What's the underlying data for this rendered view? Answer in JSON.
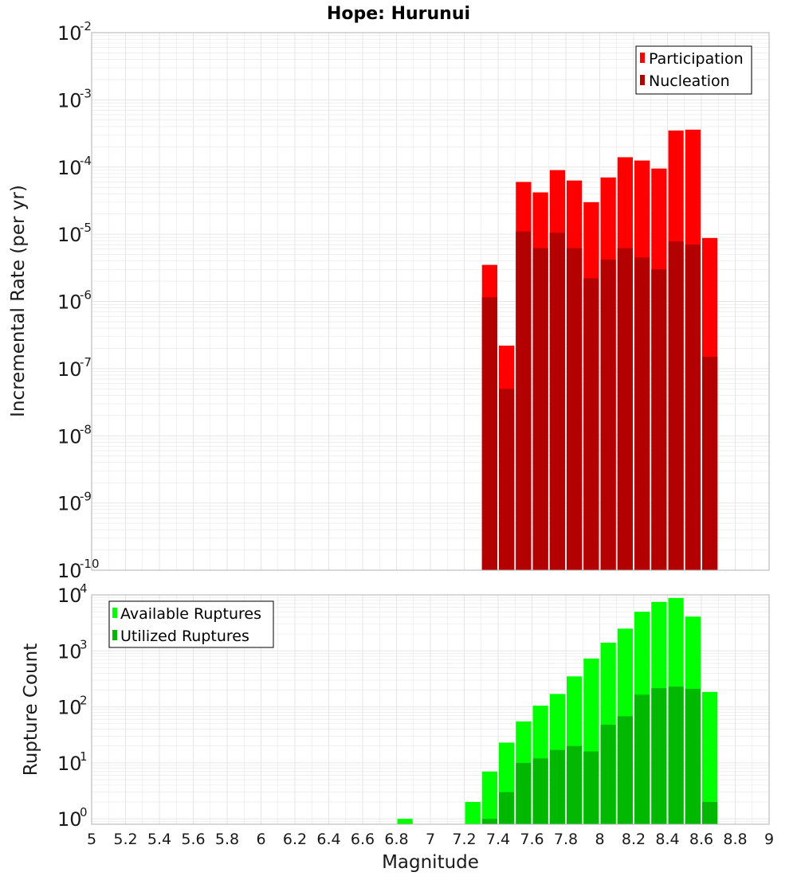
{
  "title": "Hope: Hurunui",
  "colors": {
    "participation": "#ff0000",
    "nucleation": "#b30000",
    "available": "#00ff00",
    "utilized": "#00b800",
    "grid": "#e6e6e6",
    "frame": "#b0b0b0"
  },
  "chart_data": [
    {
      "type": "bar",
      "ylabel": "Incremental Rate (per yr)",
      "xlabel": "",
      "yscale": "log",
      "ylim": [
        1e-10,
        0.01
      ],
      "xlim": [
        5,
        9
      ],
      "y_ticks": [
        {
          "base": "10",
          "exp": "-10"
        },
        {
          "base": "10",
          "exp": "-9"
        },
        {
          "base": "10",
          "exp": "-8"
        },
        {
          "base": "10",
          "exp": "-7"
        },
        {
          "base": "10",
          "exp": "-6"
        },
        {
          "base": "10",
          "exp": "-5"
        },
        {
          "base": "10",
          "exp": "-4"
        },
        {
          "base": "10",
          "exp": "-3"
        },
        {
          "base": "10",
          "exp": "-2"
        }
      ],
      "legend_position": "top-right",
      "x": [
        7.35,
        7.45,
        7.55,
        7.65,
        7.75,
        7.85,
        7.95,
        8.05,
        8.15,
        8.25,
        8.35,
        8.45,
        8.55,
        8.65
      ],
      "series": [
        {
          "name": "Participation",
          "values": [
            3.5e-06,
            2.2e-07,
            6e-05,
            4.2e-05,
            9e-05,
            6.3e-05,
            3e-05,
            7e-05,
            0.00014,
            0.000125,
            9.5e-05,
            0.00035,
            0.00036,
            8.8e-06
          ]
        },
        {
          "name": "Nucleation",
          "values": [
            1.15e-06,
            5e-08,
            1.1e-05,
            6.2e-06,
            1.05e-05,
            6.2e-06,
            2.2e-06,
            4.2e-06,
            6.2e-06,
            4.5e-06,
            3e-06,
            7.8e-06,
            7e-06,
            1.5e-07
          ]
        }
      ]
    },
    {
      "type": "bar",
      "ylabel": "Rupture Count",
      "xlabel": "Magnitude",
      "yscale": "log",
      "ylim": [
        0.8,
        10000.0
      ],
      "xlim": [
        5,
        9
      ],
      "x_ticks": [
        "5",
        "5.2",
        "5.4",
        "5.6",
        "5.8",
        "6",
        "6.2",
        "6.4",
        "6.6",
        "6.8",
        "7",
        "7.2",
        "7.4",
        "7.6",
        "7.8",
        "8",
        "8.2",
        "8.4",
        "8.6",
        "8.8",
        "9"
      ],
      "y_ticks": [
        {
          "base": "10",
          "exp": "0"
        },
        {
          "base": "10",
          "exp": "1"
        },
        {
          "base": "10",
          "exp": "2"
        },
        {
          "base": "10",
          "exp": "3"
        },
        {
          "base": "10",
          "exp": "4"
        }
      ],
      "legend_position": "top-left",
      "x": [
        6.85,
        7.25,
        7.35,
        7.45,
        7.55,
        7.65,
        7.75,
        7.85,
        7.95,
        8.05,
        8.15,
        8.25,
        8.35,
        8.45,
        8.55,
        8.65
      ],
      "series": [
        {
          "name": "Available Ruptures",
          "values": [
            1,
            2,
            7,
            23,
            55,
            105,
            170,
            350,
            730,
            1400,
            2500,
            5000,
            7500,
            8800,
            4100,
            185
          ]
        },
        {
          "name": "Utilized Ruptures",
          "values": [
            0,
            0,
            1,
            3,
            10,
            12,
            17,
            20,
            16,
            48,
            68,
            165,
            215,
            230,
            210,
            2
          ]
        }
      ]
    }
  ]
}
